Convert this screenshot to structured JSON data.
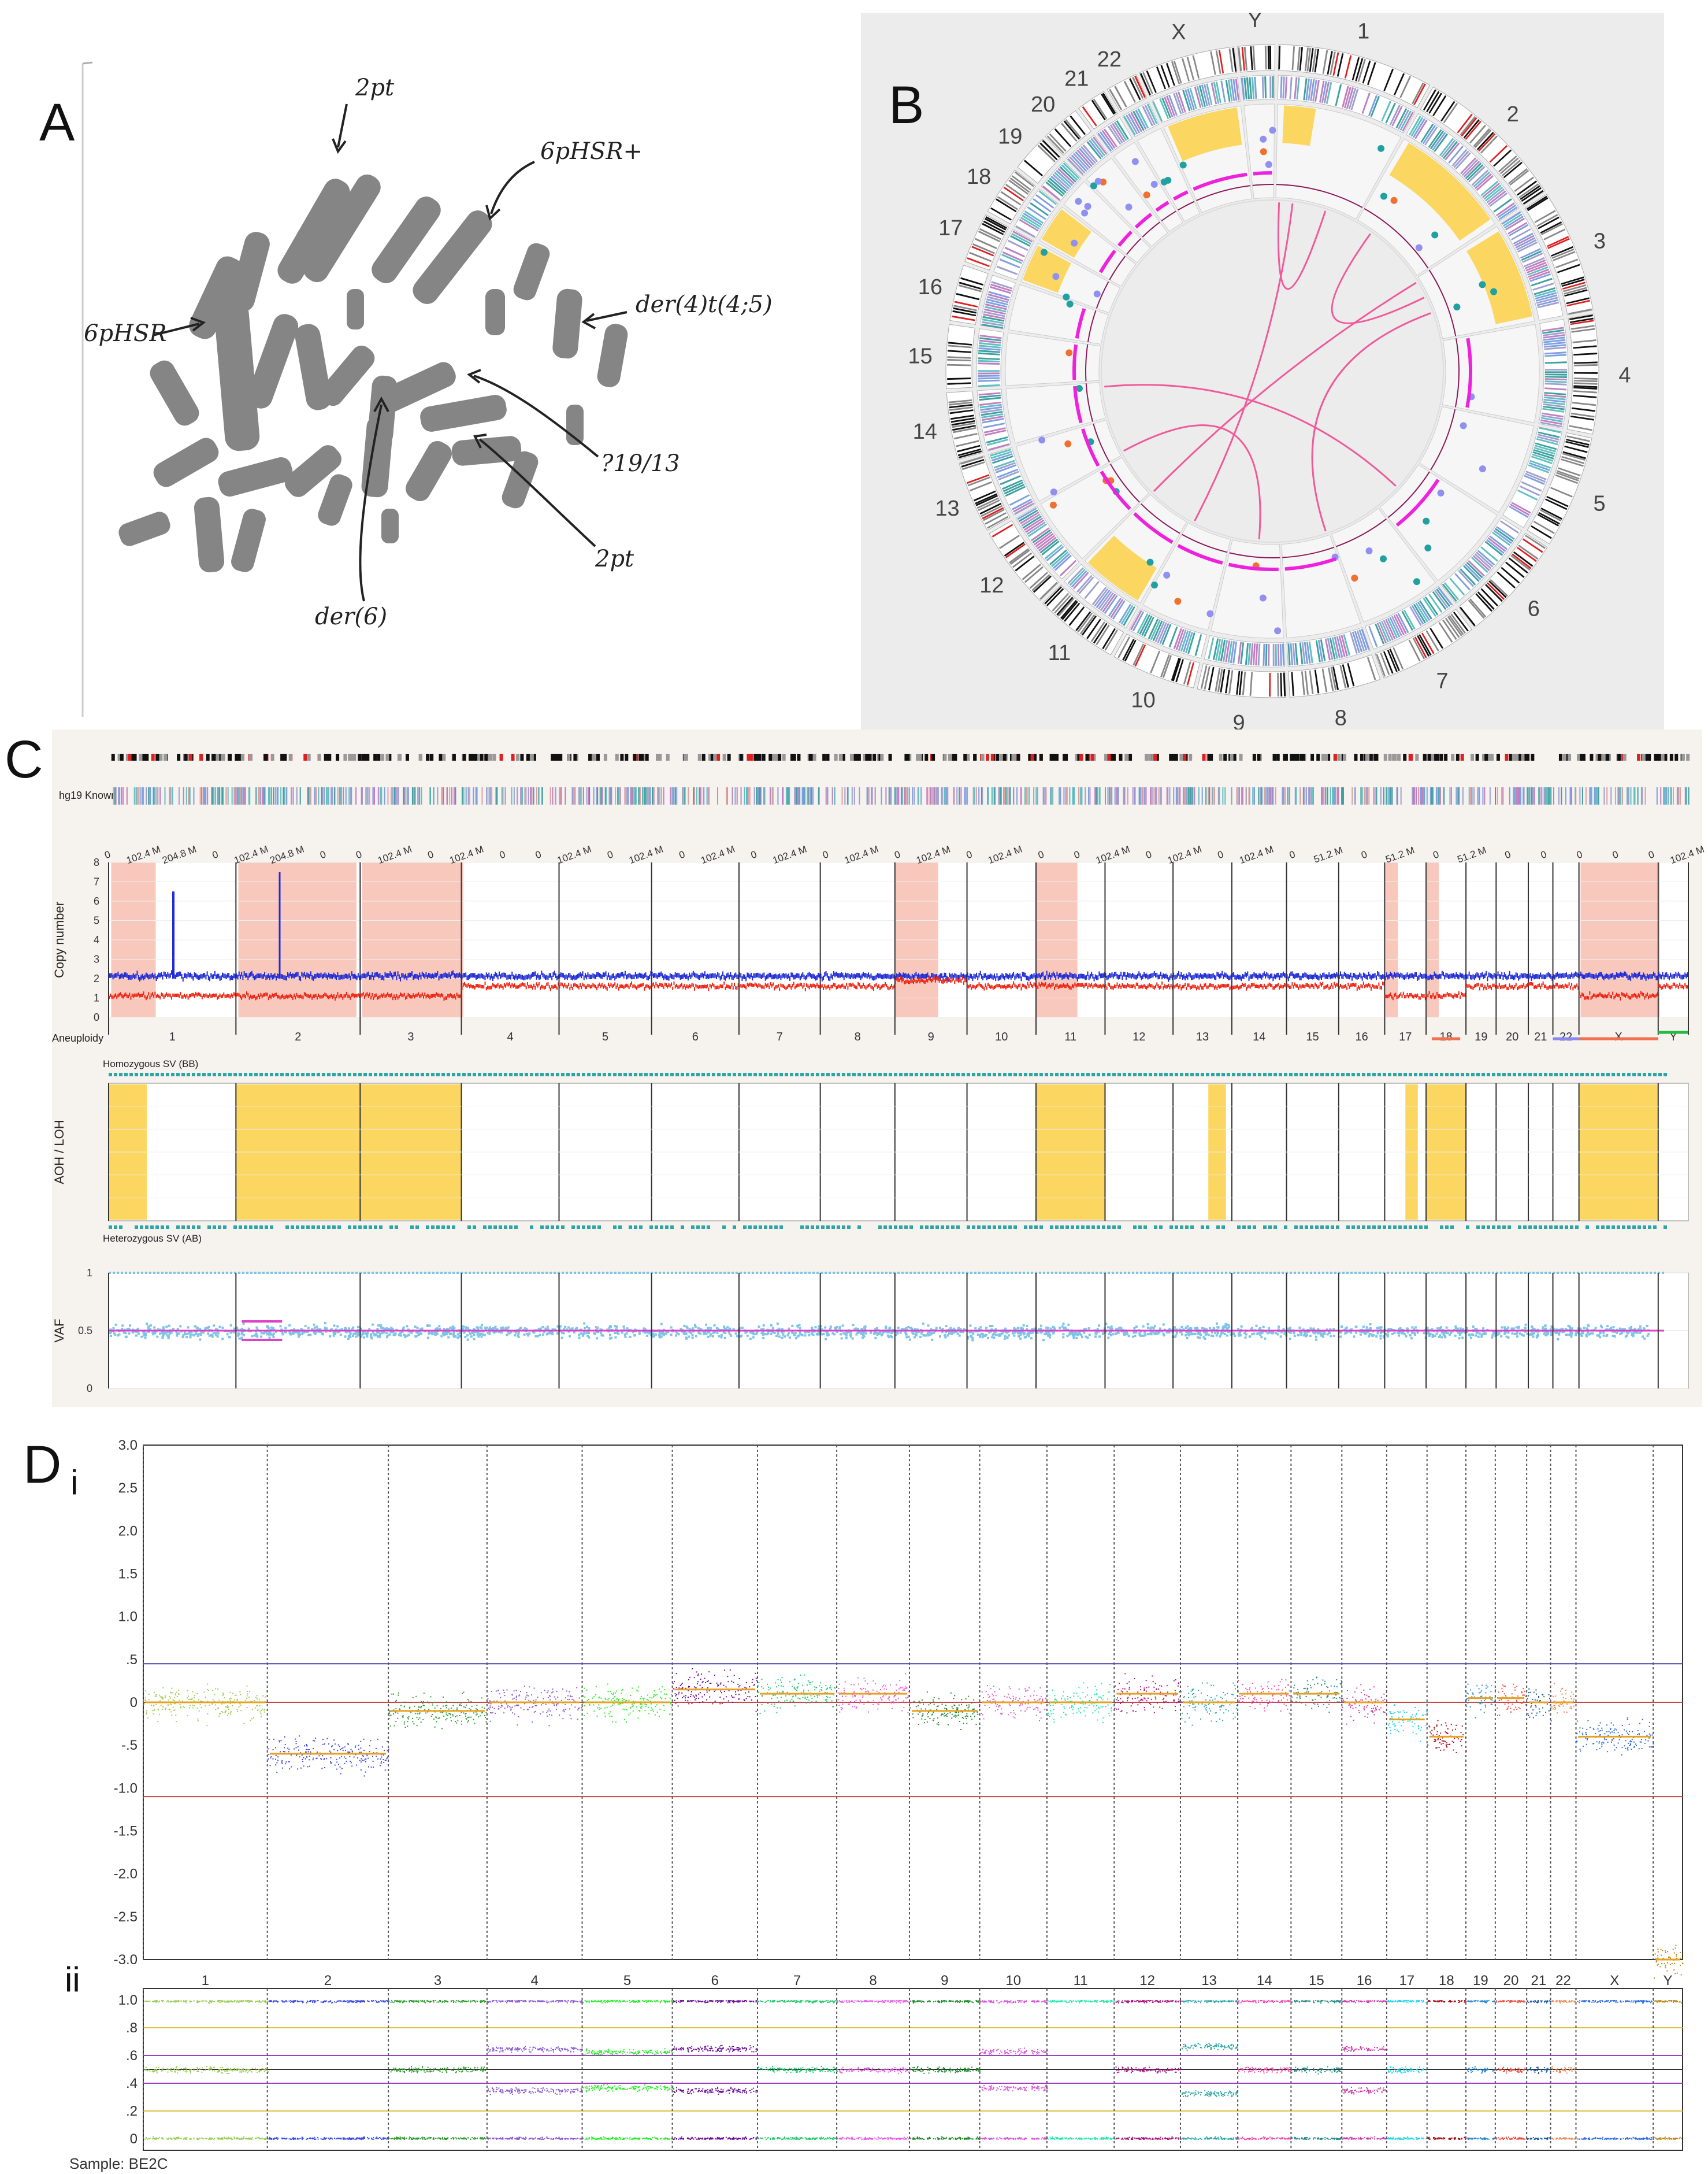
{
  "panels": {
    "a": "A",
    "b": "B",
    "c": "C",
    "d": "D",
    "di": "i",
    "dii": "ii"
  },
  "panel_a": {
    "annotations": [
      "2pt",
      "6pHSR+",
      "der(4)t(4;5)",
      "6pHSR",
      "?19/13",
      "2pt",
      "der(6)"
    ]
  },
  "panel_b": {
    "chromosomes": [
      "1",
      "2",
      "3",
      "4",
      "5",
      "6",
      "7",
      "8",
      "9",
      "10",
      "11",
      "12",
      "13",
      "14",
      "15",
      "16",
      "17",
      "18",
      "19",
      "20",
      "21",
      "22",
      "X",
      "Y"
    ],
    "colors": {
      "loh": "#fbd661",
      "link": "#f05a9a",
      "cn": "#ee22dd",
      "bg": "#ececec"
    }
  },
  "panel_c": {
    "track1_label": "hg19 Known",
    "cn_ylabel": "Copy number",
    "cn_yticks": [
      "8",
      "7",
      "6",
      "5",
      "4",
      "3",
      "2",
      "1",
      "0"
    ],
    "aneuploidy_label": "Aneuploidy",
    "hom_label": "Homozygous SV (BB)",
    "aoh_ylabel": "AOH / LOH",
    "het_label": "Heterozygous SV (AB)",
    "vaf_ylabel": "VAF",
    "vaf_yticks": [
      "1",
      "0.5",
      "0"
    ],
    "pos_ticks": [
      "0",
      "102.4 M",
      "204.8 M",
      "0",
      "102.4 M",
      "204.8 M",
      "0",
      "0",
      "102.4 M",
      "0",
      "102.4 M",
      "0",
      "0",
      "102.4 M",
      "0",
      "102.4 M",
      "0",
      "102.4 M",
      "0",
      "102.4 M",
      "0",
      "102.4 M",
      "0",
      "102.4 M",
      "0",
      "102.4 M",
      "0",
      "0",
      "102.4 M",
      "0",
      "102.4 M",
      "0",
      "102.4 M",
      "0",
      "51.2 M",
      "0",
      "51.2 M",
      "0",
      "51.2 M",
      "0",
      "0",
      "0",
      "0",
      "0",
      "102.4 M"
    ],
    "chromosomes": [
      "1",
      "2",
      "3",
      "4",
      "5",
      "6",
      "7",
      "8",
      "9",
      "10",
      "11",
      "12",
      "13",
      "14",
      "15",
      "16",
      "17",
      "18",
      "19",
      "20",
      "21",
      "22",
      "X",
      "Y"
    ],
    "colors": {
      "cn_total": "#1f2bd6",
      "cn_minor": "#ee2211",
      "aoh": "#fbd661",
      "loh_shade": "#f9c8bd",
      "vaf": "#7fc4e6",
      "vaf_line": "#e040c8",
      "sv": "#2aa6a6"
    }
  },
  "panel_d": {
    "i_yticks": [
      "3.0",
      "2.5",
      "2.0",
      "1.5",
      "1.0",
      ".5",
      "0",
      "-.5",
      "-1.0",
      "-1.5",
      "-2.0",
      "-2.5",
      "-3.0"
    ],
    "ii_yticks": [
      "1.0",
      ".8",
      ".6",
      ".4",
      ".2",
      "0"
    ],
    "chromosomes": [
      "1",
      "2",
      "3",
      "4",
      "5",
      "6",
      "7",
      "8",
      "9",
      "10",
      "11",
      "12",
      "13",
      "14",
      "15",
      "16",
      "17",
      "18",
      "19",
      "20",
      "21",
      "22",
      "X",
      "Y"
    ],
    "sample": "Sample: BE2C",
    "chrom_colors": [
      "#9ccc55",
      "#3a48e8",
      "#2e9a2e",
      "#8a58d6",
      "#25ee25",
      "#6a0d9a",
      "#22c76e",
      "#e45ae4",
      "#1f8a2a",
      "#d65ad6",
      "#20e6a6",
      "#a8107a",
      "#2aa6a6",
      "#f04aa8",
      "#2a8a82",
      "#cc3aa8",
      "#18d6f0",
      "#a80c1a",
      "#2a8ad6",
      "#f04a3a",
      "#1a5aa8",
      "#f0834a",
      "#2a6ae6",
      "#b8860b"
    ]
  }
}
